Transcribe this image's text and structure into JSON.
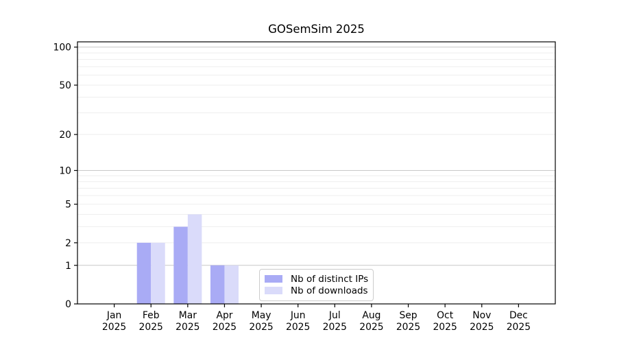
{
  "chart_data": {
    "type": "bar",
    "title": "GOSemSim 2025",
    "categories": [
      "Jan",
      "Feb",
      "Mar",
      "Apr",
      "May",
      "Jun",
      "Jul",
      "Aug",
      "Sep",
      "Oct",
      "Nov",
      "Dec"
    ],
    "year_label": "2025",
    "series": [
      {
        "name": "Nb of distinct IPs",
        "color": "#a9abf5",
        "values": [
          0,
          2,
          3,
          1,
          0,
          0,
          0,
          0,
          0,
          0,
          0,
          0
        ]
      },
      {
        "name": "Nb of downloads",
        "color": "#dadbfa",
        "values": [
          0,
          2,
          4,
          1,
          0,
          0,
          0,
          0,
          0,
          0,
          0,
          0
        ]
      }
    ],
    "y_axis": {
      "scale": "log1p",
      "ticks": [
        0,
        1,
        2,
        5,
        10,
        20,
        50,
        100
      ],
      "range": [
        0,
        110
      ],
      "major_gridlines": [
        1,
        10,
        100
      ]
    },
    "x_axis": {
      "tick_label_format": "month over year"
    },
    "legend": {
      "position": "inside-lower-center"
    },
    "grid": "on",
    "colors": {
      "major_grid": "#c8c8c8",
      "minor_grid": "#eeeeee",
      "axis": "#000000",
      "text": "#000000",
      "background": "#ffffff"
    }
  }
}
